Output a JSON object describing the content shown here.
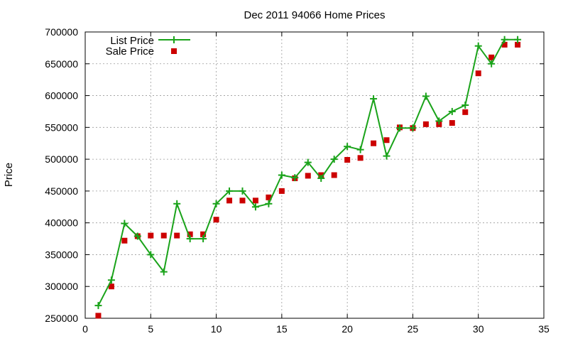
{
  "chart_data": {
    "type": "line",
    "title": "Dec 2011 94066 Home Prices",
    "xlabel": "",
    "ylabel": "Price",
    "xlim": [
      0,
      35
    ],
    "ylim": [
      250000,
      700000
    ],
    "x_ticks": [
      0,
      5,
      10,
      15,
      20,
      25,
      30,
      35
    ],
    "y_ticks": [
      250000,
      300000,
      350000,
      400000,
      450000,
      500000,
      550000,
      600000,
      650000,
      700000
    ],
    "grid": true,
    "legend_position": "top-left",
    "series": [
      {
        "name": "List Price",
        "style": "line-with-plus-markers",
        "color": "#1aa31a",
        "x": [
          1,
          2,
          3,
          4,
          5,
          6,
          7,
          8,
          9,
          10,
          11,
          12,
          13,
          14,
          15,
          16,
          17,
          18,
          19,
          20,
          21,
          22,
          23,
          24,
          25,
          26,
          27,
          28,
          29,
          30,
          31,
          32,
          33
        ],
        "y": [
          270000,
          310000,
          399000,
          379000,
          350000,
          323000,
          430000,
          375000,
          375000,
          430000,
          450000,
          450000,
          425000,
          430000,
          475000,
          471000,
          495000,
          470000,
          500000,
          520000,
          515000,
          595000,
          505000,
          549000,
          549000,
          599000,
          560000,
          575000,
          585000,
          678000,
          650000,
          688000,
          688000
        ]
      },
      {
        "name": "Sale Price",
        "style": "square-markers",
        "color": "#cc0000",
        "x": [
          1,
          2,
          3,
          4,
          5,
          6,
          7,
          8,
          9,
          10,
          11,
          12,
          13,
          14,
          15,
          16,
          17,
          18,
          19,
          20,
          21,
          22,
          23,
          24,
          25,
          26,
          27,
          28,
          29,
          30,
          31,
          32,
          33
        ],
        "y": [
          254000,
          300000,
          372000,
          379000,
          380000,
          380000,
          380000,
          382000,
          382000,
          405000,
          435000,
          435000,
          435000,
          440000,
          450000,
          470000,
          474000,
          475000,
          475000,
          499000,
          502000,
          525000,
          530000,
          550000,
          549000,
          555000,
          555000,
          557000,
          574000,
          635000,
          660000,
          680000,
          680000
        ]
      }
    ]
  }
}
